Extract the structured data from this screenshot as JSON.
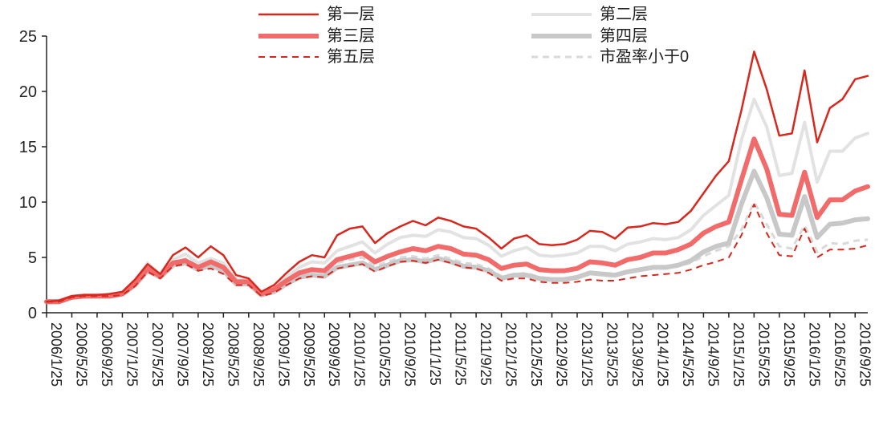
{
  "chart_data": {
    "type": "line",
    "title": "",
    "xlabel": "",
    "ylabel": "",
    "ylim": [
      0,
      25
    ],
    "yticks": [
      0,
      5,
      10,
      15,
      20,
      25
    ],
    "grid": false,
    "legend_placement": "top",
    "x": [
      "2006/1/25",
      "2006/3/25",
      "2006/5/25",
      "2006/7/25",
      "2006/9/25",
      "2006/11/25",
      "2007/1/25",
      "2007/3/25",
      "2007/5/25",
      "2007/7/25",
      "2007/9/25",
      "2007/11/25",
      "2008/1/25",
      "2008/3/25",
      "2008/5/25",
      "2008/7/25",
      "2008/9/25",
      "2008/11/25",
      "2009/1/25",
      "2009/3/25",
      "2009/5/25",
      "2009/7/25",
      "2009/9/25",
      "2009/11/25",
      "2010/1/25",
      "2010/3/25",
      "2010/5/25",
      "2010/7/25",
      "2010/9/25",
      "2010/11/25",
      "2011/1/25",
      "2011/3/25",
      "2011/5/25",
      "2011/7/25",
      "2011/9/25",
      "2011/11/25",
      "2012/1/25",
      "2012/3/25",
      "2012/5/25",
      "2012/7/25",
      "2012/9/25",
      "2012/11/25",
      "2013/1/25",
      "2013/3/25",
      "2013/5/25",
      "2013/7/25",
      "2013/9/25",
      "2013/11/25",
      "2014/1/25",
      "2014/3/25",
      "2014/5/25",
      "2014/7/25",
      "2014/9/25",
      "2014/11/25",
      "2015/1/25",
      "2015/3/25",
      "2015/5/25",
      "2015/7/25",
      "2015/9/25",
      "2015/11/25",
      "2016/1/25",
      "2016/3/25",
      "2016/5/25",
      "2016/7/25",
      "2016/9/25",
      "2016/11/25"
    ],
    "xtick_labels": [
      "2006/1/25",
      "2006/5/25",
      "2006/9/25",
      "2007/1/25",
      "2007/5/25",
      "2007/9/25",
      "2008/1/25",
      "2008/5/25",
      "2008/9/25",
      "2009/1/25",
      "2009/5/25",
      "2009/9/25",
      "2010/1/25",
      "2010/5/25",
      "2010/9/25",
      "2011/1/25",
      "2011/5/25",
      "2011/9/25",
      "2012/1/25",
      "2012/5/25",
      "2012/9/25",
      "2013/1/25",
      "2013/5/25",
      "2013/9/25",
      "2014/1/25",
      "2014/5/25",
      "2014/9/25",
      "2015/1/25",
      "2015/5/25",
      "2015/9/25",
      "2016/1/25",
      "2016/5/25",
      "2016/9/25"
    ],
    "series": [
      {
        "name": "第一层",
        "color": "#d7281e",
        "style": "solid",
        "width": 2.5,
        "values": [
          1.0,
          1.1,
          1.5,
          1.6,
          1.6,
          1.7,
          1.9,
          3.0,
          4.4,
          3.5,
          5.2,
          5.9,
          5.0,
          6.0,
          5.2,
          3.4,
          3.1,
          1.9,
          2.5,
          3.6,
          4.6,
          5.2,
          5.0,
          7.0,
          7.6,
          7.8,
          6.3,
          7.2,
          7.8,
          8.3,
          7.9,
          8.6,
          8.3,
          7.8,
          7.6,
          6.8,
          5.8,
          6.7,
          7.0,
          6.2,
          6.1,
          6.2,
          6.6,
          7.4,
          7.3,
          6.7,
          7.7,
          7.8,
          8.1,
          8.0,
          8.2,
          9.2,
          10.8,
          12.4,
          13.7,
          18.3,
          23.6,
          20.2,
          16.0,
          16.2,
          21.9,
          15.4,
          18.5,
          19.3,
          21.1,
          21.4
        ]
      },
      {
        "name": "第二层",
        "color": "#e2e2e2",
        "style": "solid",
        "width": 4,
        "values": [
          1.0,
          1.0,
          1.4,
          1.5,
          1.5,
          1.6,
          1.8,
          2.8,
          4.5,
          3.4,
          4.8,
          5.3,
          4.5,
          4.9,
          4.5,
          3.0,
          3.0,
          1.8,
          2.3,
          3.2,
          4.1,
          4.6,
          4.5,
          5.6,
          6.0,
          6.4,
          5.4,
          6.2,
          6.8,
          7.0,
          6.9,
          7.5,
          7.3,
          6.8,
          6.7,
          6.1,
          5.1,
          5.6,
          5.9,
          5.2,
          5.1,
          5.2,
          5.4,
          6.0,
          6.0,
          5.6,
          6.2,
          6.4,
          6.7,
          6.6,
          6.8,
          7.5,
          8.8,
          9.7,
          10.6,
          15.6,
          19.3,
          16.8,
          12.4,
          12.6,
          17.2,
          11.8,
          14.6,
          14.6,
          15.8,
          16.2
        ]
      },
      {
        "name": "第三层",
        "color": "#f26b6b",
        "style": "solid",
        "width": 6,
        "values": [
          1.0,
          1.0,
          1.4,
          1.5,
          1.5,
          1.5,
          1.7,
          2.6,
          4.0,
          3.3,
          4.5,
          4.7,
          4.1,
          4.6,
          4.1,
          2.8,
          2.8,
          1.7,
          2.1,
          2.9,
          3.6,
          3.9,
          3.8,
          4.8,
          5.1,
          5.4,
          4.6,
          5.1,
          5.5,
          5.8,
          5.6,
          6.0,
          5.8,
          5.3,
          5.2,
          4.8,
          4.0,
          4.3,
          4.4,
          3.9,
          3.8,
          3.8,
          4.0,
          4.6,
          4.5,
          4.3,
          4.8,
          5.0,
          5.4,
          5.4,
          5.7,
          6.2,
          7.2,
          7.8,
          8.2,
          12.0,
          15.7,
          13.0,
          8.9,
          8.8,
          12.7,
          8.6,
          10.2,
          10.2,
          11.0,
          11.4
        ]
      },
      {
        "name": "第四层",
        "color": "#c8c8c8",
        "style": "solid",
        "width": 6,
        "values": [
          1.0,
          1.0,
          1.4,
          1.5,
          1.5,
          1.5,
          1.7,
          2.5,
          3.8,
          3.2,
          4.3,
          4.5,
          3.9,
          4.3,
          3.8,
          2.6,
          2.6,
          1.6,
          1.9,
          2.6,
          3.2,
          3.4,
          3.3,
          4.1,
          4.3,
          4.5,
          3.9,
          4.3,
          4.7,
          4.8,
          4.6,
          4.9,
          4.6,
          4.2,
          4.1,
          3.8,
          3.1,
          3.4,
          3.4,
          3.1,
          3.0,
          3.0,
          3.2,
          3.6,
          3.5,
          3.4,
          3.7,
          3.9,
          4.1,
          4.1,
          4.3,
          4.7,
          5.5,
          6.0,
          6.3,
          9.8,
          12.8,
          10.4,
          7.1,
          7.0,
          10.5,
          6.8,
          8.0,
          8.1,
          8.4,
          8.5
        ]
      },
      {
        "name": "第五层",
        "color": "#d7281e",
        "style": "dashed",
        "width": 2,
        "values": [
          1.0,
          1.0,
          1.4,
          1.5,
          1.5,
          1.5,
          1.6,
          2.4,
          3.7,
          3.1,
          4.2,
          4.4,
          3.8,
          4.0,
          3.5,
          2.5,
          2.5,
          1.5,
          1.8,
          2.5,
          3.1,
          3.3,
          3.2,
          4.0,
          4.2,
          4.4,
          3.7,
          4.2,
          4.6,
          4.7,
          4.5,
          4.8,
          4.5,
          4.1,
          4.0,
          3.6,
          2.9,
          3.1,
          3.1,
          2.8,
          2.7,
          2.7,
          2.8,
          3.0,
          2.9,
          2.9,
          3.1,
          3.3,
          3.4,
          3.5,
          3.6,
          3.9,
          4.3,
          4.6,
          5.0,
          7.0,
          9.8,
          7.2,
          5.2,
          5.1,
          7.6,
          5.0,
          5.7,
          5.7,
          5.8,
          6.1
        ]
      },
      {
        "name": "市盈率小于0",
        "color": "#d9d9d9",
        "style": "dashed",
        "width": 3,
        "values": [
          1.0,
          1.0,
          1.4,
          1.5,
          1.5,
          1.6,
          1.7,
          2.5,
          4.2,
          3.3,
          4.5,
          4.9,
          4.2,
          4.3,
          3.9,
          2.7,
          2.7,
          1.6,
          2.0,
          2.8,
          3.5,
          3.8,
          3.7,
          4.5,
          4.8,
          5.0,
          4.2,
          4.6,
          5.0,
          5.1,
          4.9,
          5.2,
          4.9,
          4.5,
          4.4,
          4.0,
          3.3,
          3.5,
          3.6,
          3.2,
          3.1,
          3.1,
          3.3,
          3.5,
          3.4,
          3.3,
          3.6,
          3.8,
          4.0,
          4.0,
          4.2,
          4.5,
          5.1,
          5.6,
          6.0,
          7.5,
          10.0,
          8.0,
          6.0,
          5.8,
          7.9,
          5.5,
          6.3,
          6.2,
          6.5,
          6.6
        ]
      }
    ]
  }
}
